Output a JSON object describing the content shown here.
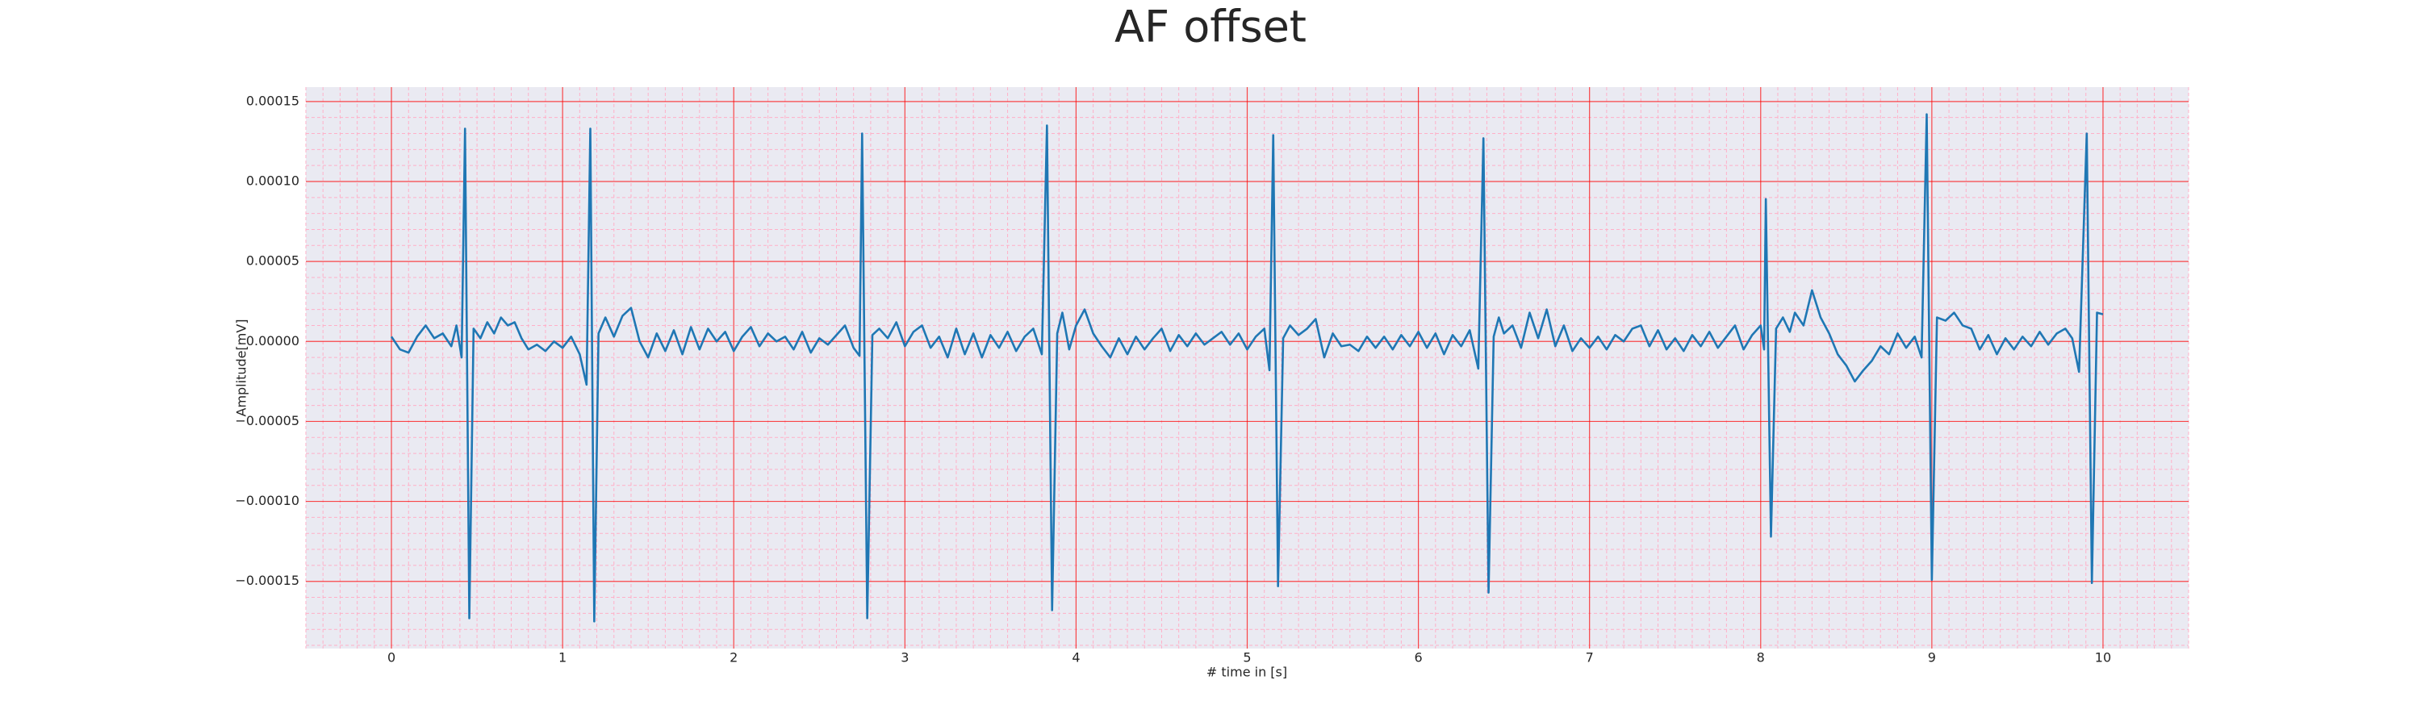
{
  "chart_data": {
    "type": "line",
    "title": "AF offset",
    "xlabel": "# time in [s]",
    "ylabel": "Amplitude[mV]",
    "color": "#1f77b4",
    "background": "#eaeaf2",
    "grid": true,
    "grid_color": "#ff0000",
    "minor_grid": true,
    "minor_grid_color": "#ffb0c8",
    "xlim": [
      -0.5,
      10.5
    ],
    "xticks": [
      0,
      1,
      2,
      3,
      4,
      5,
      6,
      7,
      8,
      9,
      10
    ],
    "ylim": [
      -0.000192,
      0.000159
    ],
    "yticks": [
      {
        "value": -0.00015,
        "label": "−0.00015"
      },
      {
        "value": -0.0001,
        "label": "−0.00010"
      },
      {
        "value": -5e-05,
        "label": "−0.00005"
      },
      {
        "value": 0,
        "label": "0.00000"
      },
      {
        "value": 5e-05,
        "label": "0.00005"
      },
      {
        "value": 0.0001,
        "label": "0.00010"
      },
      {
        "value": 0.00015,
        "label": "0.00015"
      }
    ],
    "x": [
      0,
      0.05,
      0.1,
      0.15,
      0.2,
      0.25,
      0.3,
      0.35,
      0.38,
      0.41,
      0.43,
      0.455,
      0.48,
      0.52,
      0.56,
      0.6,
      0.64,
      0.68,
      0.72,
      0.76,
      0.8,
      0.85,
      0.9,
      0.95,
      1.0,
      1.05,
      1.1,
      1.14,
      1.162,
      1.185,
      1.21,
      1.25,
      1.3,
      1.35,
      1.4,
      1.45,
      1.5,
      1.55,
      1.6,
      1.65,
      1.7,
      1.75,
      1.8,
      1.85,
      1.9,
      1.95,
      2.0,
      2.05,
      2.1,
      2.15,
      2.2,
      2.25,
      2.3,
      2.35,
      2.4,
      2.45,
      2.5,
      2.55,
      2.6,
      2.65,
      2.7,
      2.735,
      2.75,
      2.78,
      2.81,
      2.85,
      2.9,
      2.95,
      3.0,
      3.05,
      3.1,
      3.15,
      3.2,
      3.25,
      3.3,
      3.35,
      3.4,
      3.45,
      3.5,
      3.55,
      3.6,
      3.65,
      3.7,
      3.75,
      3.8,
      3.83,
      3.86,
      3.89,
      3.92,
      3.96,
      4.0,
      4.05,
      4.1,
      4.15,
      4.2,
      4.25,
      4.3,
      4.35,
      4.4,
      4.45,
      4.5,
      4.55,
      4.6,
      4.65,
      4.7,
      4.75,
      4.8,
      4.85,
      4.9,
      4.95,
      5.0,
      5.05,
      5.1,
      5.13,
      5.152,
      5.18,
      5.21,
      5.25,
      5.3,
      5.35,
      5.4,
      5.45,
      5.5,
      5.55,
      5.6,
      5.65,
      5.7,
      5.75,
      5.8,
      5.85,
      5.9,
      5.95,
      6.0,
      6.05,
      6.1,
      6.15,
      6.2,
      6.25,
      6.3,
      6.35,
      6.38,
      6.41,
      6.44,
      6.47,
      6.5,
      6.55,
      6.6,
      6.65,
      6.7,
      6.75,
      6.8,
      6.85,
      6.9,
      6.95,
      7.0,
      7.05,
      7.1,
      7.15,
      7.2,
      7.25,
      7.3,
      7.35,
      7.4,
      7.45,
      7.5,
      7.55,
      7.6,
      7.65,
      7.7,
      7.75,
      7.8,
      7.85,
      7.9,
      7.95,
      8.0,
      8.02,
      8.03,
      8.06,
      8.09,
      8.13,
      8.17,
      8.2,
      8.25,
      8.3,
      8.35,
      8.4,
      8.45,
      8.5,
      8.55,
      8.6,
      8.65,
      8.7,
      8.75,
      8.8,
      8.85,
      8.9,
      8.94,
      8.97,
      9.0,
      9.03,
      9.08,
      9.13,
      9.18,
      9.23,
      9.28,
      9.33,
      9.38,
      9.43,
      9.48,
      9.53,
      9.58,
      9.63,
      9.68,
      9.73,
      9.78,
      9.82,
      9.86,
      9.905,
      9.935,
      9.965,
      10.0
    ],
    "values": [
      3e-06,
      -5e-06,
      -7e-06,
      3e-06,
      1e-05,
      2e-06,
      5e-06,
      -3e-06,
      1e-05,
      -1e-05,
      0.000133,
      -0.000173,
      8e-06,
      2e-06,
      1.2e-05,
      5e-06,
      1.5e-05,
      1e-05,
      1.2e-05,
      2e-06,
      -5e-06,
      -2e-06,
      -6e-06,
      0.0,
      -4e-06,
      3e-06,
      -8e-06,
      -2.7e-05,
      0.000133,
      -0.000175,
      5e-06,
      1.5e-05,
      3e-06,
      1.6e-05,
      2.1e-05,
      0.0,
      -1e-05,
      5e-06,
      -6e-06,
      7e-06,
      -8e-06,
      9e-06,
      -5e-06,
      8e-06,
      0.0,
      6e-06,
      -6e-06,
      3e-06,
      9e-06,
      -3e-06,
      5e-06,
      0.0,
      3e-06,
      -5e-06,
      6e-06,
      -7e-06,
      2e-06,
      -2e-06,
      4e-06,
      1e-05,
      -4e-06,
      -9e-06,
      0.00013,
      -0.000173,
      4e-06,
      8e-06,
      2e-06,
      1.2e-05,
      -3e-06,
      6e-06,
      1e-05,
      -4e-06,
      3e-06,
      -1e-05,
      8e-06,
      -8e-06,
      5e-06,
      -1e-05,
      4e-06,
      -4e-06,
      6e-06,
      -6e-06,
      3e-06,
      8e-06,
      -8e-06,
      0.000135,
      -0.000168,
      5e-06,
      1.8e-05,
      -5e-06,
      1e-05,
      2e-05,
      5e-06,
      -3e-06,
      -1e-05,
      2e-06,
      -8e-06,
      3e-06,
      -5e-06,
      2e-06,
      8e-06,
      -6e-06,
      4e-06,
      -3e-06,
      5e-06,
      -2e-06,
      2e-06,
      6e-06,
      -2e-06,
      5e-06,
      -5e-06,
      3e-06,
      8e-06,
      -1.8e-05,
      0.000129,
      -0.000153,
      2e-06,
      1e-05,
      4e-06,
      8e-06,
      1.4e-05,
      -1e-05,
      5e-06,
      -3e-06,
      -2e-06,
      -6e-06,
      3e-06,
      -4e-06,
      3e-06,
      -5e-06,
      4e-06,
      -3e-06,
      6e-06,
      -4e-06,
      5e-06,
      -8e-06,
      4e-06,
      -3e-06,
      7e-06,
      -1.7e-05,
      0.000127,
      -0.000157,
      3e-06,
      1.5e-05,
      5e-06,
      1e-05,
      -4e-06,
      1.8e-05,
      2e-06,
      2e-05,
      -3e-06,
      1e-05,
      -6e-06,
      2e-06,
      -4e-06,
      3e-06,
      -5e-06,
      4e-06,
      0.0,
      8e-06,
      1e-05,
      -3e-06,
      7e-06,
      -5e-06,
      2e-06,
      -6e-06,
      4e-06,
      -3e-06,
      6e-06,
      -4e-06,
      3e-06,
      1e-05,
      -5e-06,
      4e-06,
      1e-05,
      -5e-06,
      8.9e-05,
      -0.000122,
      8e-06,
      1.5e-05,
      6e-06,
      1.8e-05,
      1e-05,
      3.2e-05,
      1.5e-05,
      5e-06,
      -8e-06,
      -1.5e-05,
      -2.5e-05,
      -1.8e-05,
      -1.2e-05,
      -3e-06,
      -8e-06,
      5e-06,
      -4e-06,
      3e-06,
      -1e-05,
      0.000142,
      -0.000149,
      1.5e-05,
      1.3e-05,
      1.8e-05,
      1e-05,
      8e-06,
      -5e-06,
      4e-06,
      -8e-06,
      2e-06,
      -5e-06,
      3e-06,
      -3e-06,
      6e-06,
      -2e-06,
      5e-06,
      8e-06,
      2e-06,
      -1.9e-05,
      0.00013,
      -0.000151,
      1.8e-05,
      1.7e-05
    ]
  }
}
